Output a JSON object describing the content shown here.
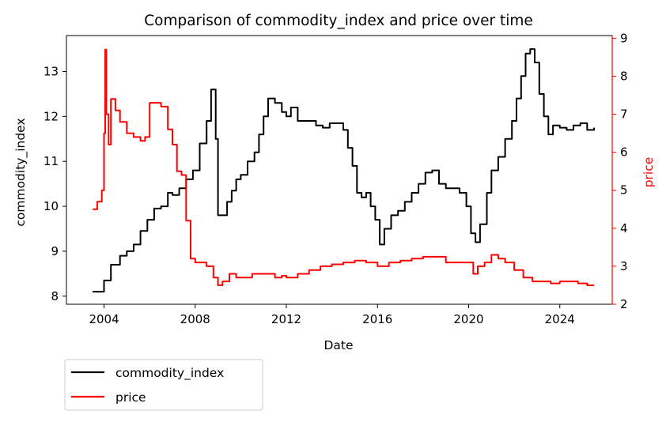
{
  "chart_data": {
    "type": "line",
    "title": "Comparison of commodity_index and price over time",
    "xlabel": "Date",
    "ylabel_left": "commodity_index",
    "ylabel_right": "price",
    "x_ticks": [
      "2004",
      "2008",
      "2012",
      "2016",
      "2020",
      "2024"
    ],
    "xlim": [
      2002.35,
      2026.3
    ],
    "y_left_ticks": [
      "8",
      "9",
      "10",
      "11",
      "12",
      "13"
    ],
    "ylim_left": [
      7.82,
      13.8
    ],
    "y_right_ticks": [
      "2",
      "3",
      "4",
      "5",
      "6",
      "7",
      "8",
      "9"
    ],
    "ylim_right": [
      2.0,
      9.07
    ],
    "legend_position": "below-left",
    "grid": false,
    "colors": {
      "commodity_index": "#000000",
      "price": "#ff0000",
      "right_axis": "#ff0000"
    },
    "series": [
      {
        "name": "commodity_index",
        "axis": "left",
        "x": [
          2003.5,
          2003.8,
          2004.0,
          2004.3,
          2004.7,
          2005.0,
          2005.3,
          2005.6,
          2005.9,
          2006.2,
          2006.5,
          2006.8,
          2007.0,
          2007.3,
          2007.6,
          2007.9,
          2008.2,
          2008.5,
          2008.7,
          2008.9,
          2009.0,
          2009.2,
          2009.4,
          2009.6,
          2009.8,
          2010.0,
          2010.3,
          2010.6,
          2010.8,
          2011.0,
          2011.2,
          2011.5,
          2011.8,
          2012.0,
          2012.2,
          2012.5,
          2012.8,
          2013.0,
          2013.3,
          2013.6,
          2013.9,
          2014.2,
          2014.5,
          2014.7,
          2014.9,
          2015.1,
          2015.3,
          2015.5,
          2015.7,
          2015.9,
          2016.1,
          2016.3,
          2016.6,
          2016.9,
          2017.2,
          2017.5,
          2017.8,
          2018.1,
          2018.4,
          2018.7,
          2019.0,
          2019.3,
          2019.6,
          2019.9,
          2020.1,
          2020.3,
          2020.5,
          2020.8,
          2021.0,
          2021.3,
          2021.6,
          2021.9,
          2022.1,
          2022.3,
          2022.5,
          2022.7,
          2022.9,
          2023.1,
          2023.3,
          2023.5,
          2023.7,
          2024.0,
          2024.3,
          2024.6,
          2024.9,
          2025.2,
          2025.5
        ],
        "values": [
          8.1,
          8.1,
          8.35,
          8.7,
          8.9,
          9.0,
          9.15,
          9.45,
          9.7,
          9.95,
          10.0,
          10.3,
          10.25,
          10.4,
          10.6,
          10.8,
          11.4,
          11.9,
          12.6,
          11.5,
          9.8,
          9.8,
          10.1,
          10.35,
          10.6,
          10.7,
          11.0,
          11.2,
          11.6,
          12.0,
          12.4,
          12.3,
          12.1,
          12.0,
          12.2,
          11.9,
          11.9,
          11.9,
          11.8,
          11.75,
          11.85,
          11.85,
          11.7,
          11.3,
          10.9,
          10.3,
          10.2,
          10.3,
          10.0,
          9.7,
          9.15,
          9.5,
          9.8,
          9.9,
          10.1,
          10.3,
          10.5,
          10.75,
          10.8,
          10.5,
          10.4,
          10.4,
          10.3,
          10.0,
          9.4,
          9.2,
          9.6,
          10.3,
          10.8,
          11.1,
          11.5,
          11.9,
          12.4,
          12.9,
          13.4,
          13.5,
          13.2,
          12.5,
          12.0,
          11.6,
          11.8,
          11.75,
          11.7,
          11.8,
          11.85,
          11.7,
          11.75
        ]
      },
      {
        "name": "price",
        "axis": "right",
        "x": [
          2003.5,
          2003.7,
          2003.9,
          2004.0,
          2004.05,
          2004.1,
          2004.2,
          2004.3,
          2004.5,
          2004.7,
          2005.0,
          2005.3,
          2005.6,
          2005.8,
          2006.0,
          2006.2,
          2006.5,
          2006.8,
          2007.0,
          2007.2,
          2007.4,
          2007.6,
          2007.8,
          2008.0,
          2008.5,
          2008.8,
          2009.0,
          2009.2,
          2009.5,
          2009.8,
          2010.0,
          2010.5,
          2011.0,
          2011.5,
          2011.8,
          2012.0,
          2012.5,
          2013.0,
          2013.5,
          2014.0,
          2014.5,
          2015.0,
          2015.5,
          2016.0,
          2016.5,
          2017.0,
          2017.5,
          2018.0,
          2018.5,
          2019.0,
          2019.5,
          2020.0,
          2020.2,
          2020.4,
          2020.7,
          2021.0,
          2021.3,
          2021.6,
          2022.0,
          2022.4,
          2022.8,
          2023.2,
          2023.6,
          2024.0,
          2024.4,
          2024.8,
          2025.2,
          2025.5
        ],
        "values": [
          4.5,
          4.7,
          5.0,
          6.5,
          8.7,
          7.0,
          6.2,
          7.4,
          7.1,
          6.8,
          6.5,
          6.4,
          6.3,
          6.4,
          7.3,
          7.3,
          7.2,
          6.6,
          6.2,
          5.5,
          5.4,
          4.2,
          3.2,
          3.1,
          3.0,
          2.7,
          2.5,
          2.6,
          2.8,
          2.7,
          2.7,
          2.8,
          2.8,
          2.7,
          2.75,
          2.7,
          2.8,
          2.9,
          3.0,
          3.05,
          3.1,
          3.15,
          3.1,
          3.0,
          3.1,
          3.15,
          3.2,
          3.25,
          3.25,
          3.1,
          3.1,
          3.1,
          2.8,
          3.0,
          3.1,
          3.3,
          3.2,
          3.1,
          2.9,
          2.7,
          2.6,
          2.6,
          2.55,
          2.6,
          2.6,
          2.55,
          2.5,
          2.5
        ]
      }
    ]
  }
}
